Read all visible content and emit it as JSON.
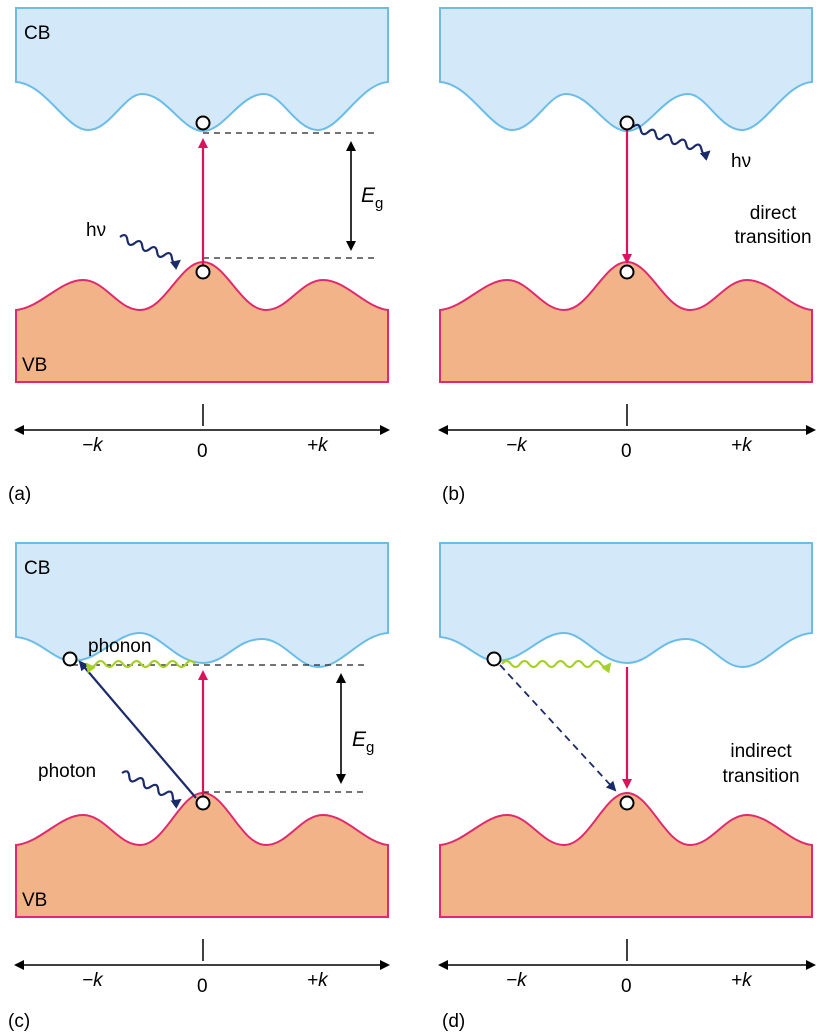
{
  "panels": {
    "a": {
      "letter": "(a)",
      "cb": "CB",
      "vb": "VB",
      "photon": "hν",
      "eg_main": "E",
      "eg_sub": "g",
      "neg_k": "−k",
      "zero": "0",
      "pos_k": "+k"
    },
    "b": {
      "letter": "(b)",
      "photon": "hν",
      "caption_line1": "direct",
      "caption_line2": "transition",
      "neg_k": "−k",
      "zero": "0",
      "pos_k": "+k"
    },
    "c": {
      "letter": "(c)",
      "cb": "CB",
      "vb": "VB",
      "phonon": "phonon",
      "photon": "photon",
      "eg_main": "E",
      "eg_sub": "g",
      "neg_k": "−k",
      "zero": "0",
      "pos_k": "+k"
    },
    "d": {
      "letter": "(d)",
      "caption_line1": "indirect",
      "caption_line2": "transition",
      "neg_k": "−k",
      "zero": "0",
      "pos_k": "+k"
    }
  },
  "colors": {
    "conduction_band": "#d3e8f8",
    "conduction_edge": "#6bbde8",
    "valence_band": "#f2b389",
    "valence_edge": "#e02a6d",
    "transition_arrow": "#d9145c",
    "photon_wave": "#1b2a6b",
    "phonon_wave": "#a6d126"
  }
}
